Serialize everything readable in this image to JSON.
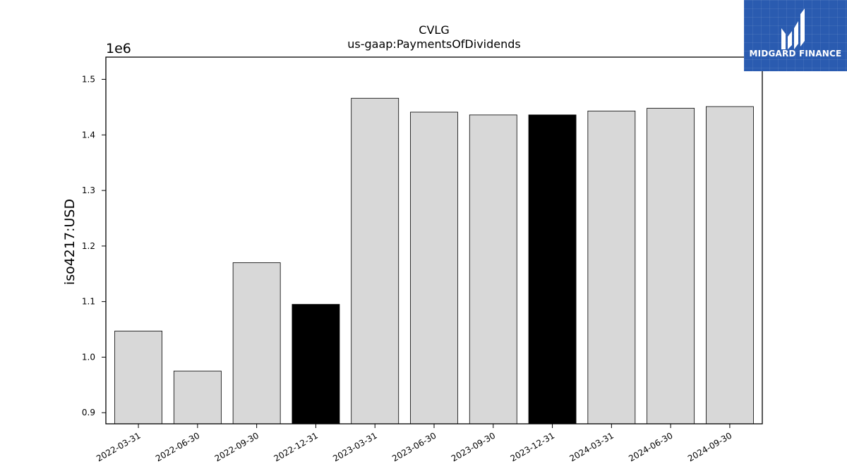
{
  "chart_data": {
    "type": "bar",
    "title": "CVLG",
    "subtitle": "us-gaap:PaymentsOfDividends",
    "xlabel": "",
    "ylabel": "iso4217:USD",
    "y_scale_label": "1e6",
    "y_multiplier": 1000000,
    "categories": [
      "2022-03-31",
      "2022-06-30",
      "2022-09-30",
      "2022-12-31",
      "2023-03-31",
      "2023-06-30",
      "2023-09-30",
      "2023-12-31",
      "2024-03-31",
      "2024-06-30",
      "2024-09-30"
    ],
    "values": [
      1047000,
      975000,
      1170000,
      1095000,
      1466000,
      1441000,
      1436000,
      1436000,
      1443000,
      1448000,
      1451000
    ],
    "highlighted": [
      false,
      false,
      false,
      true,
      false,
      false,
      false,
      true,
      false,
      false,
      false
    ],
    "colors": {
      "bar": "#d8d8d8",
      "highlight": "#000000",
      "edge": "#000000"
    },
    "ylim": [
      0.88,
      1.54
    ],
    "yticks": [
      "0.9",
      "1.0",
      "1.1",
      "1.2",
      "1.3",
      "1.4",
      "1.5"
    ],
    "grid": false,
    "legend": "none"
  },
  "logo": {
    "text": "MIDGARD FINANCE"
  }
}
